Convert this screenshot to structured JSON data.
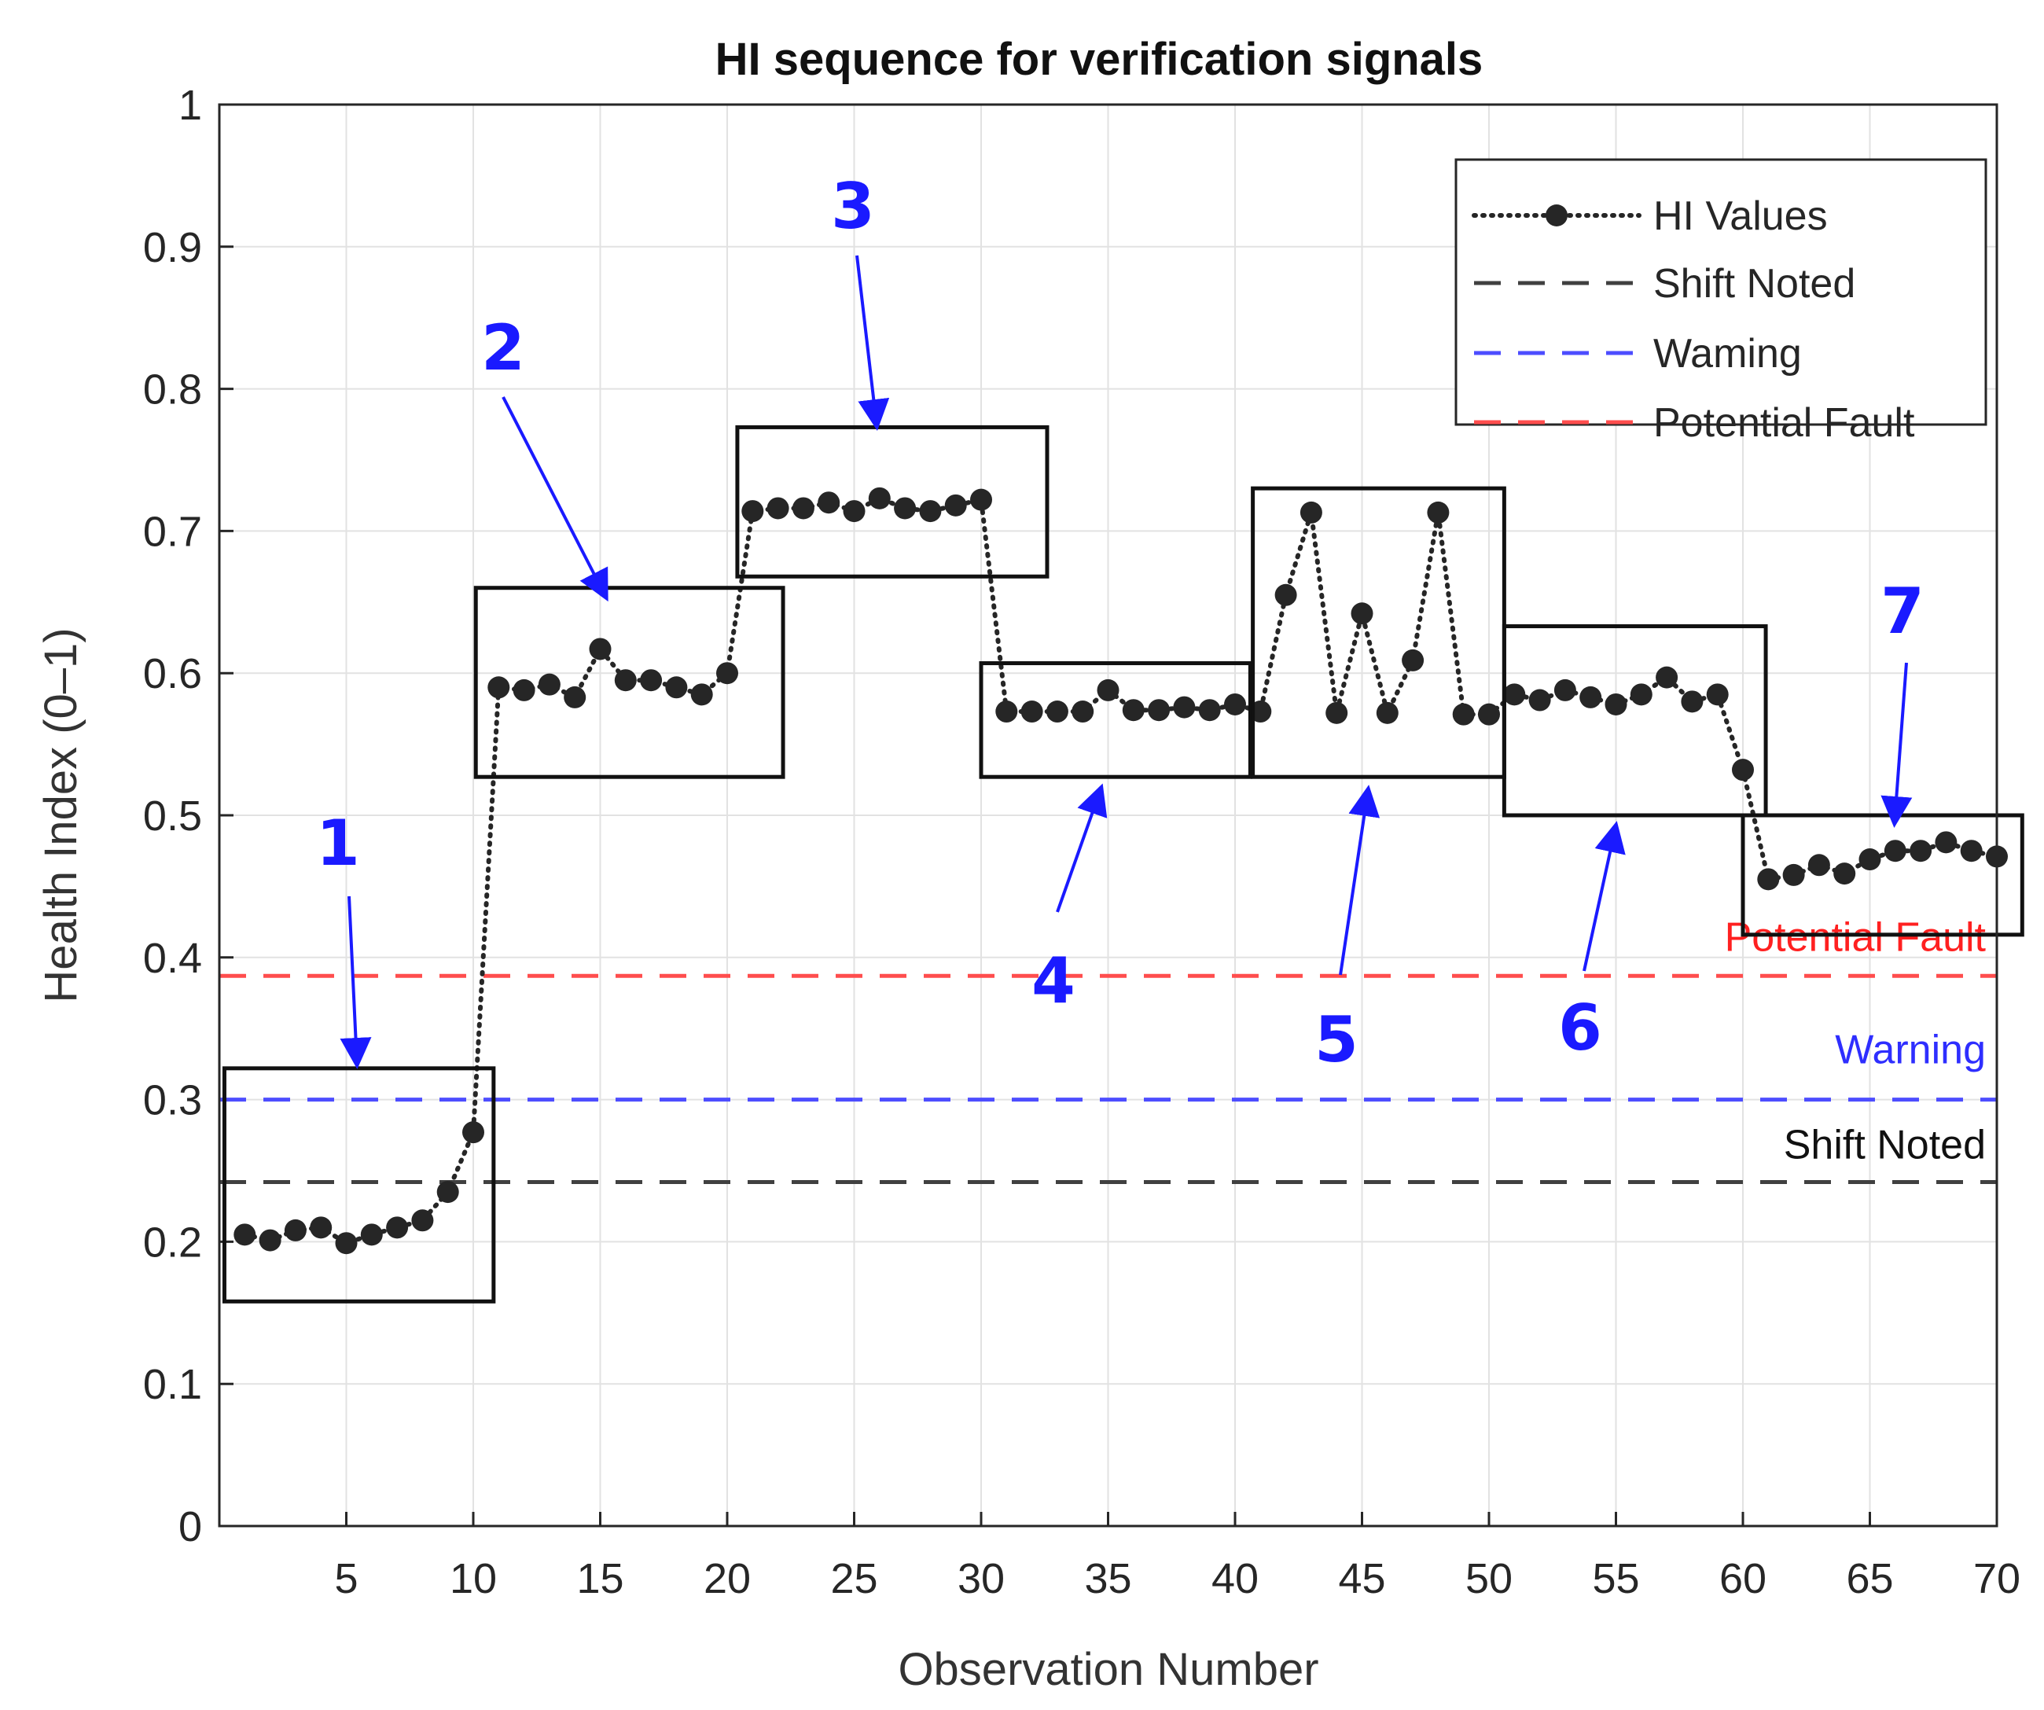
{
  "chart_data": {
    "type": "line",
    "title": "HI sequence for verification signals",
    "xlabel": "Observation Number",
    "ylabel": "Health Index (0–1)",
    "xlim": [
      0,
      70
    ],
    "ylim": [
      0,
      1
    ],
    "xticks": [
      5,
      10,
      15,
      20,
      25,
      30,
      35,
      40,
      45,
      50,
      55,
      60,
      65,
      70
    ],
    "yticks": [
      0,
      0.1,
      0.2,
      0.3,
      0.4,
      0.5,
      0.6,
      0.7,
      0.8,
      0.9,
      1
    ],
    "grid": true,
    "legend_position": "top-right",
    "series": [
      {
        "name": "HI Values",
        "style": "dotted-marker",
        "color": "#262626",
        "x": [
          1,
          2,
          3,
          4,
          5,
          6,
          7,
          8,
          9,
          10,
          11,
          12,
          13,
          14,
          15,
          16,
          17,
          18,
          19,
          20,
          21,
          22,
          23,
          24,
          25,
          26,
          27,
          28,
          29,
          30,
          31,
          32,
          33,
          34,
          35,
          36,
          37,
          38,
          39,
          40,
          41,
          42,
          43,
          44,
          45,
          46,
          47,
          48,
          49,
          50,
          51,
          52,
          53,
          54,
          55,
          56,
          57,
          58,
          59,
          60,
          61,
          62,
          63,
          64,
          65,
          66,
          67,
          68,
          69,
          70
        ],
        "values": [
          0.205,
          0.201,
          0.208,
          0.21,
          0.199,
          0.205,
          0.21,
          0.215,
          0.235,
          0.277,
          0.59,
          0.588,
          0.592,
          0.583,
          0.617,
          0.595,
          0.595,
          0.59,
          0.585,
          0.6,
          0.714,
          0.716,
          0.716,
          0.72,
          0.714,
          0.723,
          0.716,
          0.714,
          0.718,
          0.722,
          0.573,
          0.573,
          0.573,
          0.573,
          0.588,
          0.574,
          0.574,
          0.576,
          0.574,
          0.578,
          0.573,
          0.655,
          0.713,
          0.572,
          0.642,
          0.572,
          0.609,
          0.713,
          0.571,
          0.571,
          0.585,
          0.581,
          0.588,
          0.583,
          0.578,
          0.585,
          0.597,
          0.58,
          0.585,
          0.532,
          0.455,
          0.458,
          0.465,
          0.459,
          0.469,
          0.475,
          0.475,
          0.481,
          0.475,
          0.471
        ]
      }
    ],
    "thresholds": [
      {
        "name": "Shift Noted",
        "value": 0.242,
        "color": "#404040",
        "label": "Shift Noted",
        "label_color": "#111111"
      },
      {
        "name": "Warning",
        "value": 0.3,
        "color": "#4d4dff",
        "label": "Warning",
        "label_color": "#2e2eff"
      },
      {
        "name": "Potential Fault",
        "value": 0.387,
        "color": "#ff4d4d",
        "label": "Potential Fault",
        "label_color": "#ff2020"
      }
    ],
    "legend": [
      {
        "name": "HI Values",
        "style": "dotted-marker",
        "color": "#262626"
      },
      {
        "name": "Shift Noted",
        "style": "dashed",
        "color": "#404040"
      },
      {
        "name": "Waming",
        "style": "dashed",
        "color": "#4d4dff"
      },
      {
        "name": "Potential Fault",
        "style": "dashed",
        "color": "#ff4d4d"
      }
    ],
    "annotations": [
      {
        "label": "1",
        "box": {
          "x": [
            0.2,
            10.8
          ],
          "y": [
            0.158,
            0.322
          ]
        }
      },
      {
        "label": "2",
        "box": {
          "x": [
            10.1,
            22.2
          ],
          "y": [
            0.527,
            0.66
          ]
        }
      },
      {
        "label": "3",
        "box": {
          "x": [
            20.4,
            32.6
          ],
          "y": [
            0.668,
            0.773
          ]
        }
      },
      {
        "label": "4",
        "box": {
          "x": [
            30.0,
            40.6
          ],
          "y": [
            0.527,
            0.607
          ]
        }
      },
      {
        "label": "5",
        "box": {
          "x": [
            40.7,
            50.6
          ],
          "y": [
            0.527,
            0.73
          ]
        }
      },
      {
        "label": "6",
        "box": {
          "x": [
            50.6,
            60.9
          ],
          "y": [
            0.5,
            0.633
          ]
        }
      },
      {
        "label": "7",
        "box": {
          "x": [
            60.0,
            71.0
          ],
          "y": [
            0.416,
            0.5
          ]
        }
      }
    ]
  }
}
